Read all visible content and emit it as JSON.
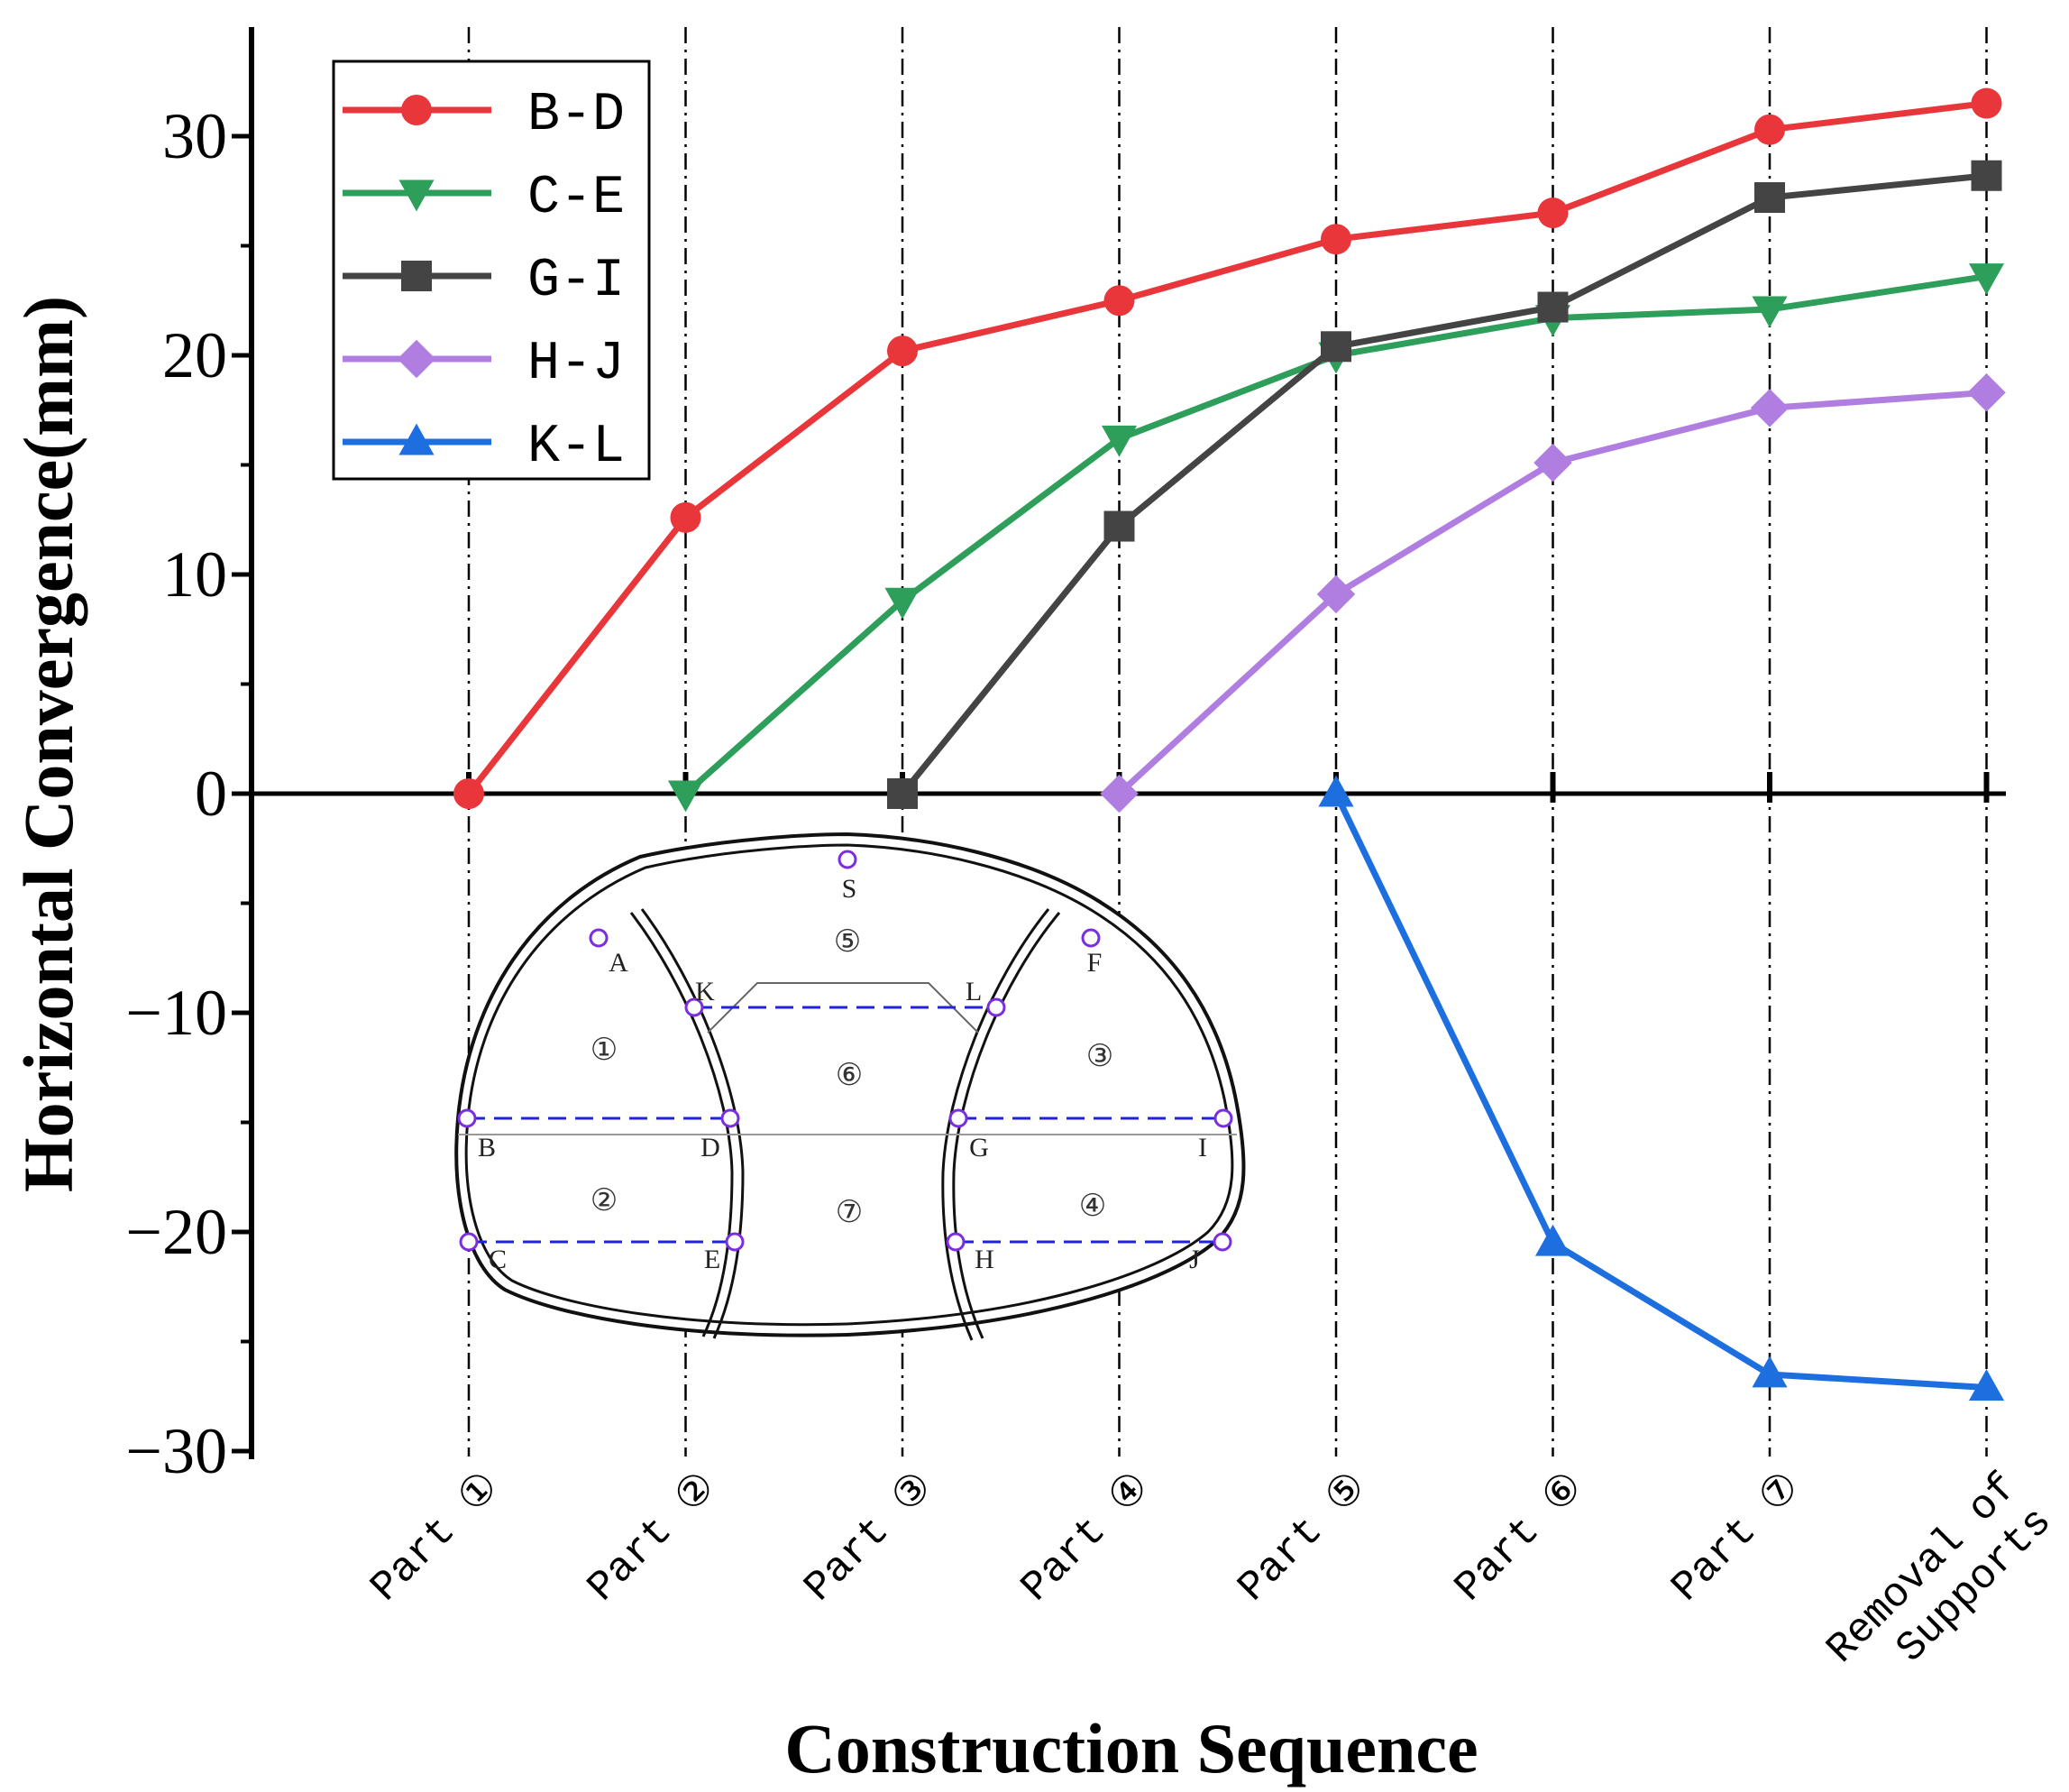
{
  "chart_data": {
    "type": "line",
    "title": "",
    "xlabel": "Construction Sequence",
    "ylabel": "Horizontal Convergence(mm)",
    "ylim": [
      -30,
      35
    ],
    "yticks": [
      -30,
      -20,
      -10,
      0,
      10,
      20,
      30
    ],
    "ytick_labels": [
      "−30",
      "−20",
      "−10",
      "0",
      "10",
      "20",
      "30"
    ],
    "grid": false,
    "legend_position": "top-left",
    "categories": [
      [
        "Part ①"
      ],
      [
        "Part ②"
      ],
      [
        "Part ③"
      ],
      [
        "Part ④"
      ],
      [
        "Part ⑤"
      ],
      [
        "Part ⑥"
      ],
      [
        "Part ⑦"
      ],
      [
        "Removal of",
        "Supports"
      ]
    ],
    "series": [
      {
        "name": "B-D",
        "color": "#e8363b",
        "marker": "circle",
        "values": [
          0,
          12.6,
          20.2,
          22.5,
          25.3,
          26.5,
          30.3,
          31.5
        ]
      },
      {
        "name": "C-E",
        "color": "#2e9e5b",
        "marker": "triangle-down",
        "values": [
          null,
          0,
          8.8,
          16.2,
          20.0,
          21.7,
          22.1,
          23.6
        ]
      },
      {
        "name": "G-I",
        "color": "#444444",
        "marker": "square",
        "values": [
          null,
          null,
          0,
          12.2,
          20.4,
          22.2,
          27.2,
          28.2
        ]
      },
      {
        "name": "H-J",
        "color": "#b07ee0",
        "marker": "diamond",
        "values": [
          null,
          null,
          null,
          0,
          9.1,
          15.1,
          17.6,
          18.3
        ]
      },
      {
        "name": "K-L",
        "color": "#1d6fe0",
        "marker": "triangle-up",
        "values": [
          null,
          null,
          null,
          null,
          0,
          -20.5,
          -26.5,
          -27.1
        ]
      }
    ]
  },
  "diagram": {
    "point_labels": [
      "S",
      "A",
      "F",
      "K",
      "L",
      "B",
      "D",
      "G",
      "I",
      "C",
      "E",
      "H",
      "J"
    ],
    "zone_labels": [
      "①",
      "②",
      "③",
      "④",
      "⑤",
      "⑥",
      "⑦"
    ]
  }
}
